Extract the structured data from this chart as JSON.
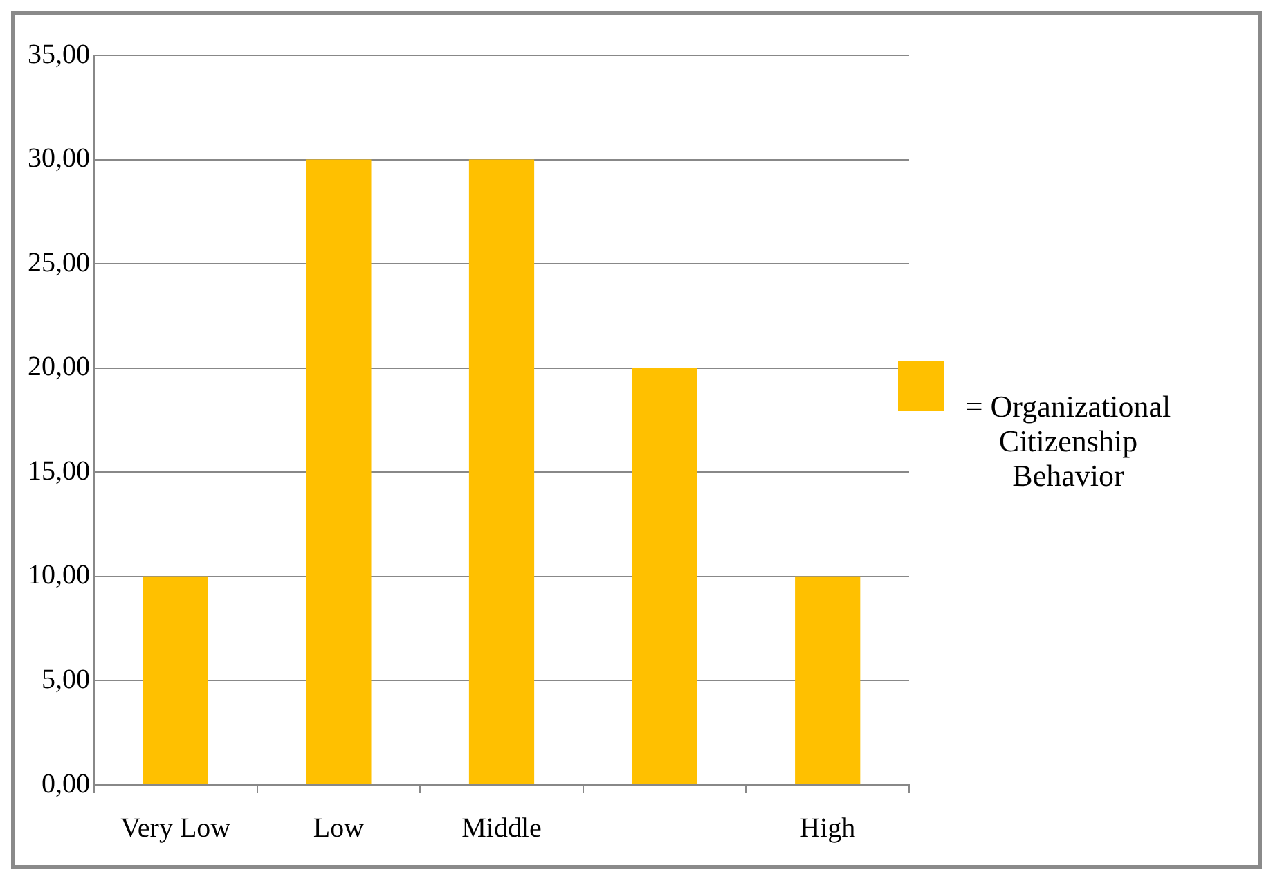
{
  "chart_data": {
    "type": "bar",
    "categories": [
      "Very Low",
      "Low",
      "Middle",
      null,
      "High"
    ],
    "series": [
      {
        "name": "= Organizational Citizenship Behavior",
        "color": "#ffc000",
        "values": [
          10,
          30,
          30,
          20,
          10
        ]
      }
    ],
    "ylim": [
      0,
      35
    ],
    "yticks": [
      {
        "value": 0,
        "label": "0,00"
      },
      {
        "value": 5,
        "label": "5,00"
      },
      {
        "value": 10,
        "label": "10,00"
      },
      {
        "value": 15,
        "label": "15,00"
      },
      {
        "value": 20,
        "label": "20,00"
      },
      {
        "value": 25,
        "label": "25,00"
      },
      {
        "value": 30,
        "label": "30,00"
      },
      {
        "value": 35,
        "label": "35,00"
      }
    ],
    "grid": "y",
    "legend": "right"
  }
}
